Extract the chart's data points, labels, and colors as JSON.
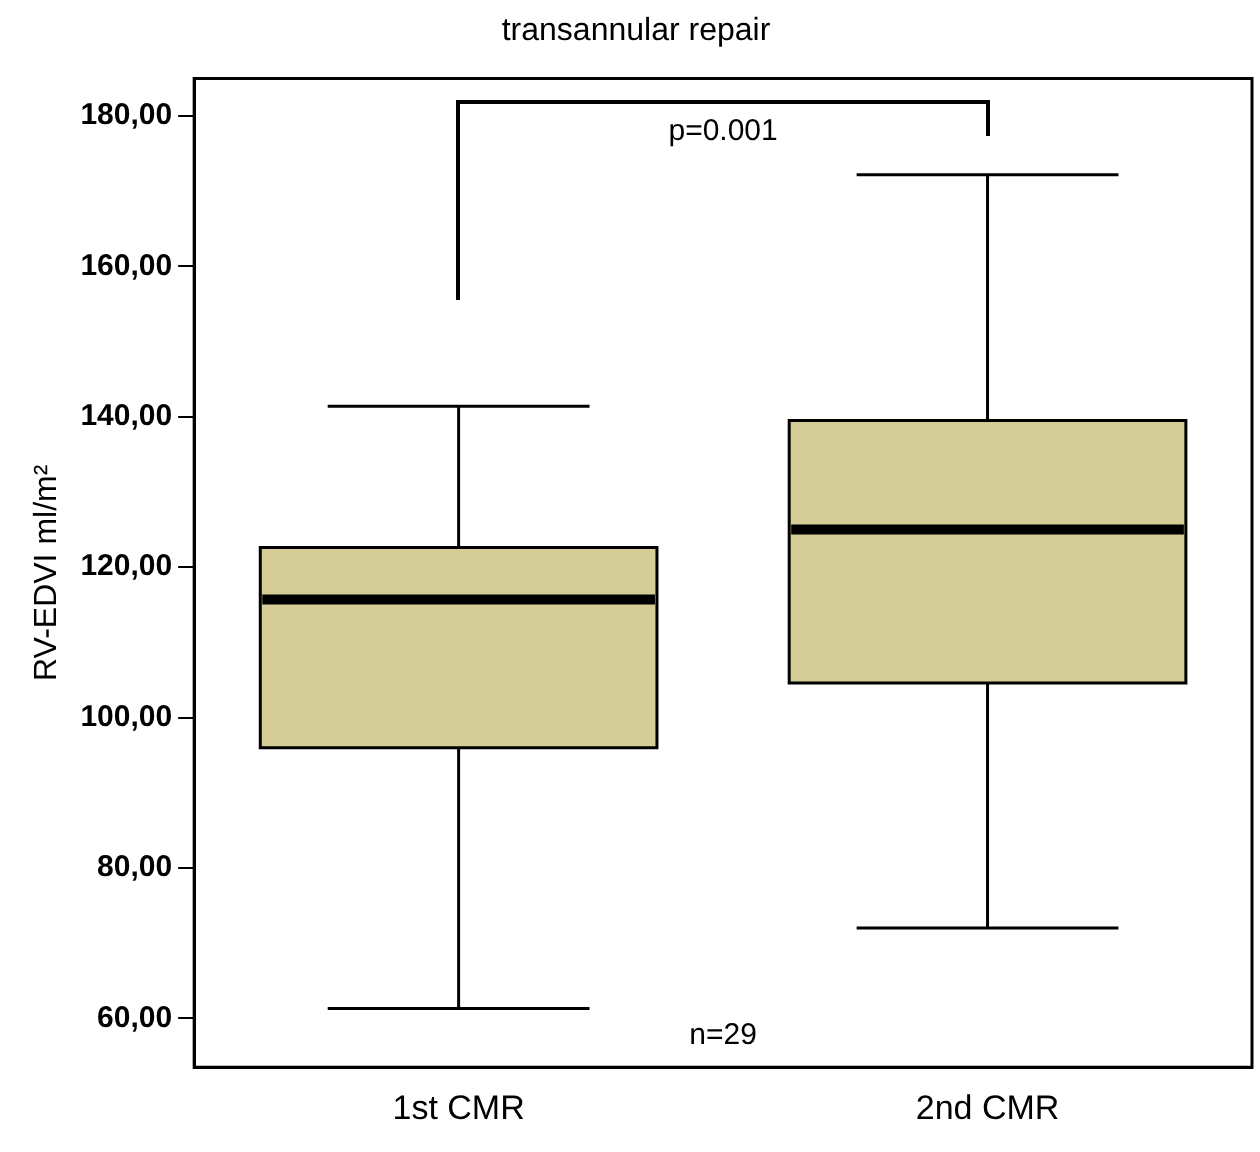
{
  "chart_data": {
    "type": "box",
    "title": "transannular repair",
    "ylabel": "RV-EDVI ml/m²",
    "categories": [
      "1st CMR",
      "2nd CMR"
    ],
    "boxes": [
      {
        "low": 61.3,
        "q1": 96,
        "median": 115.7,
        "q3": 122.6,
        "high": 141.4
      },
      {
        "low": 72,
        "q1": 104.6,
        "median": 125,
        "q3": 139.5,
        "high": 172.2
      }
    ],
    "color": "#d4cd98",
    "ylim": [
      53.5,
      185
    ],
    "yticks": [
      {
        "value": 60,
        "label": "60,00"
      },
      {
        "value": 80,
        "label": "80,00"
      },
      {
        "value": 100,
        "label": "100,00"
      },
      {
        "value": 120,
        "label": "120,00"
      },
      {
        "value": 140,
        "label": "140,00"
      },
      {
        "value": 160,
        "label": "160,00"
      },
      {
        "value": 180,
        "label": "180,00"
      }
    ],
    "annotations": [
      "p=0.001",
      "n=29"
    ],
    "grid": false,
    "legend": false
  }
}
